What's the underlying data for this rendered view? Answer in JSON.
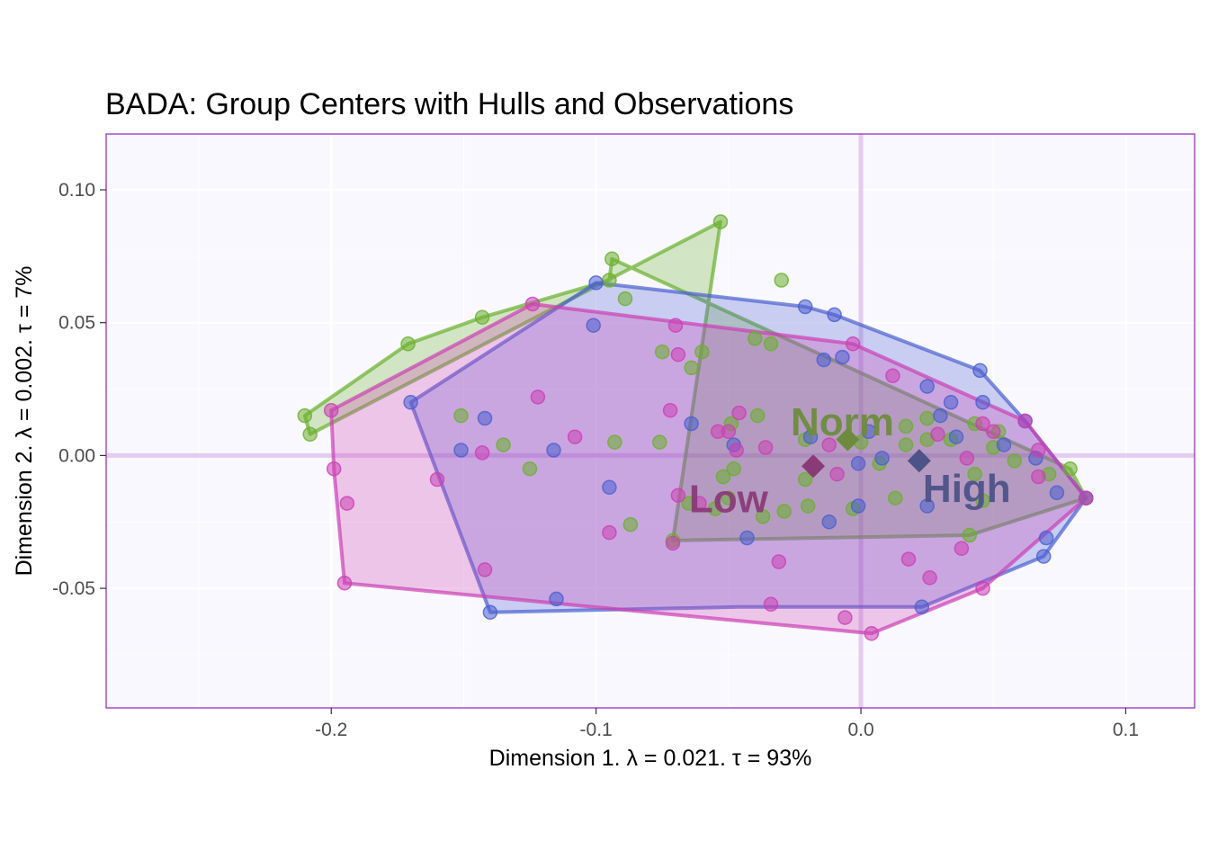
{
  "chart_data": {
    "type": "scatter",
    "title": "BADA: Group Centers with Hulls and Observations",
    "xlabel": "Dimension 1.   λ = 0.021.  τ = 93%",
    "ylabel": "Dimension 2.   λ = 0.002.  τ = 7%",
    "xlim": [
      -0.285,
      0.126
    ],
    "ylim": [
      -0.095,
      0.121
    ],
    "x_ticks": [
      -0.2,
      -0.1,
      0.0,
      0.1
    ],
    "x_tick_labels": [
      "-0.2",
      "-0.1",
      "0.0",
      "0.1"
    ],
    "y_ticks": [
      -0.05,
      0.0,
      0.05,
      0.1
    ],
    "y_tick_labels": [
      "-0.05",
      "0.00",
      "0.05",
      "0.10"
    ],
    "grid": true,
    "colors": {
      "panel_background": "#f8f8fe",
      "panel_border": "#9a2fc0",
      "grid": "#ffffff",
      "zero_lines": "#e1c6ee"
    },
    "series": [
      {
        "name": "Norm",
        "color": "#6aaf2c",
        "label_color": "#6e8b3d",
        "center": [
          -0.005,
          0.006
        ],
        "label_pos": [
          -0.007,
          0.013
        ],
        "hull": [
          [
            -0.053,
            0.088
          ],
          [
            -0.208,
            0.008
          ],
          [
            -0.21,
            0.015
          ],
          [
            -0.171,
            0.042
          ],
          [
            -0.143,
            0.052
          ],
          [
            -0.095,
            0.066
          ],
          [
            -0.094,
            0.074
          ],
          [
            0.079,
            -0.005
          ],
          [
            0.085,
            -0.016
          ],
          [
            0.041,
            -0.03
          ],
          [
            -0.071,
            -0.032
          ]
        ],
        "points": [
          [
            -0.053,
            0.088
          ],
          [
            -0.03,
            0.066
          ],
          [
            -0.095,
            0.066
          ],
          [
            -0.094,
            0.074
          ],
          [
            -0.143,
            0.052
          ],
          [
            -0.171,
            0.042
          ],
          [
            -0.21,
            0.015
          ],
          [
            -0.208,
            0.008
          ],
          [
            -0.089,
            0.059
          ],
          [
            -0.075,
            0.039
          ],
          [
            -0.06,
            0.039
          ],
          [
            -0.04,
            0.044
          ],
          [
            -0.034,
            0.042
          ],
          [
            -0.064,
            0.033
          ],
          [
            -0.151,
            0.015
          ],
          [
            -0.135,
            0.004
          ],
          [
            -0.125,
            -0.005
          ],
          [
            -0.093,
            0.005
          ],
          [
            -0.076,
            0.005
          ],
          [
            -0.049,
            0.012
          ],
          [
            -0.039,
            0.015
          ],
          [
            -0.021,
            0.006
          ],
          [
            0.0,
            0.005
          ],
          [
            0.017,
            0.011
          ],
          [
            0.025,
            0.014
          ],
          [
            0.043,
            0.012
          ],
          [
            0.052,
            0.009
          ],
          [
            0.05,
            0.003
          ],
          [
            0.058,
            -0.002
          ],
          [
            0.071,
            -0.007
          ],
          [
            0.079,
            -0.005
          ],
          [
            0.085,
            -0.016
          ],
          [
            0.043,
            -0.007
          ],
          [
            0.046,
            -0.017
          ],
          [
            0.041,
            -0.03
          ],
          [
            0.013,
            -0.016
          ],
          [
            -0.003,
            -0.02
          ],
          [
            -0.02,
            -0.019
          ],
          [
            -0.029,
            -0.021
          ],
          [
            -0.037,
            -0.023
          ],
          [
            -0.05,
            -0.016
          ],
          [
            -0.055,
            -0.02
          ],
          [
            -0.065,
            -0.018
          ],
          [
            -0.087,
            -0.026
          ],
          [
            -0.071,
            -0.032
          ],
          [
            -0.048,
            -0.005
          ],
          [
            -0.052,
            -0.008
          ],
          [
            -0.021,
            -0.009
          ],
          [
            0.007,
            -0.003
          ],
          [
            0.034,
            0.006
          ],
          [
            0.017,
            0.004
          ],
          [
            0.025,
            0.006
          ]
        ]
      },
      {
        "name": "High",
        "color": "#4a5fcf",
        "label_color": "#4d5288",
        "center": [
          0.022,
          -0.002
        ],
        "label_pos": [
          0.04,
          -0.012
        ],
        "hull": [
          [
            -0.1,
            0.065
          ],
          [
            -0.17,
            0.02
          ],
          [
            -0.14,
            -0.059
          ],
          [
            -0.046,
            -0.057
          ],
          [
            0.023,
            -0.057
          ],
          [
            0.069,
            -0.038
          ],
          [
            0.085,
            -0.016
          ],
          [
            0.062,
            0.013
          ],
          [
            0.045,
            0.032
          ],
          [
            -0.01,
            0.053
          ],
          [
            -0.021,
            0.056
          ]
        ],
        "points": [
          [
            -0.1,
            0.065
          ],
          [
            -0.021,
            0.056
          ],
          [
            -0.01,
            0.053
          ],
          [
            -0.101,
            0.049
          ],
          [
            -0.014,
            0.036
          ],
          [
            -0.007,
            0.037
          ],
          [
            0.045,
            0.032
          ],
          [
            0.025,
            0.026
          ],
          [
            -0.17,
            0.02
          ],
          [
            -0.142,
            0.014
          ],
          [
            -0.064,
            0.012
          ],
          [
            -0.151,
            0.002
          ],
          [
            -0.116,
            0.002
          ],
          [
            -0.048,
            0.004
          ],
          [
            -0.019,
            0.007
          ],
          [
            -0.005,
            0.006
          ],
          [
            0.003,
            0.009
          ],
          [
            0.03,
            0.015
          ],
          [
            0.034,
            0.02
          ],
          [
            0.046,
            0.02
          ],
          [
            0.062,
            0.013
          ],
          [
            0.036,
            0.007
          ],
          [
            0.054,
            0.004
          ],
          [
            -0.001,
            -0.003
          ],
          [
            0.008,
            -0.001
          ],
          [
            0.066,
            -0.001
          ],
          [
            0.074,
            -0.014
          ],
          [
            0.085,
            -0.016
          ],
          [
            0.07,
            -0.031
          ],
          [
            0.069,
            -0.038
          ],
          [
            -0.095,
            -0.012
          ],
          [
            -0.043,
            -0.031
          ],
          [
            0.025,
            -0.019
          ],
          [
            -0.012,
            -0.025
          ],
          [
            -0.001,
            -0.019
          ],
          [
            -0.115,
            -0.054
          ],
          [
            -0.14,
            -0.059
          ],
          [
            0.023,
            -0.057
          ]
        ]
      },
      {
        "name": "Low",
        "color": "#cc3fb4",
        "label_color": "#8b3a78",
        "center": [
          -0.018,
          -0.004
        ],
        "label_pos": [
          -0.05,
          -0.016
        ],
        "hull": [
          [
            -0.124,
            0.057
          ],
          [
            -0.2,
            0.017
          ],
          [
            -0.199,
            -0.005
          ],
          [
            -0.195,
            -0.048
          ],
          [
            0.004,
            -0.067
          ],
          [
            0.046,
            -0.05
          ],
          [
            0.085,
            -0.016
          ],
          [
            0.062,
            0.013
          ],
          [
            -0.003,
            0.042
          ]
        ],
        "points": [
          [
            -0.124,
            0.057
          ],
          [
            -0.07,
            0.049
          ],
          [
            -0.069,
            0.038
          ],
          [
            -0.003,
            0.042
          ],
          [
            0.012,
            0.03
          ],
          [
            -0.122,
            0.022
          ],
          [
            -0.072,
            0.017
          ],
          [
            -0.046,
            0.016
          ],
          [
            -0.2,
            0.017
          ],
          [
            -0.108,
            0.007
          ],
          [
            -0.143,
            0.001
          ],
          [
            -0.054,
            0.009
          ],
          [
            -0.05,
            0.009
          ],
          [
            -0.047,
            0.002
          ],
          [
            -0.036,
            0.003
          ],
          [
            -0.012,
            0.004
          ],
          [
            -0.009,
            -0.007
          ],
          [
            0.029,
            0.008
          ],
          [
            0.046,
            0.012
          ],
          [
            0.05,
            0.009
          ],
          [
            0.062,
            0.013
          ],
          [
            0.067,
            0.002
          ],
          [
            0.04,
            -0.001
          ],
          [
            0.067,
            -0.008
          ],
          [
            0.085,
            -0.016
          ],
          [
            -0.199,
            -0.005
          ],
          [
            -0.194,
            -0.018
          ],
          [
            -0.16,
            -0.009
          ],
          [
            -0.069,
            -0.015
          ],
          [
            -0.061,
            -0.018
          ],
          [
            -0.095,
            -0.029
          ],
          [
            -0.071,
            -0.033
          ],
          [
            -0.031,
            -0.04
          ],
          [
            0.018,
            -0.039
          ],
          [
            0.026,
            -0.046
          ],
          [
            0.038,
            -0.035
          ],
          [
            -0.034,
            -0.056
          ],
          [
            -0.006,
            -0.061
          ],
          [
            0.004,
            -0.067
          ],
          [
            0.046,
            -0.05
          ],
          [
            -0.142,
            -0.043
          ],
          [
            -0.195,
            -0.048
          ]
        ]
      }
    ]
  }
}
